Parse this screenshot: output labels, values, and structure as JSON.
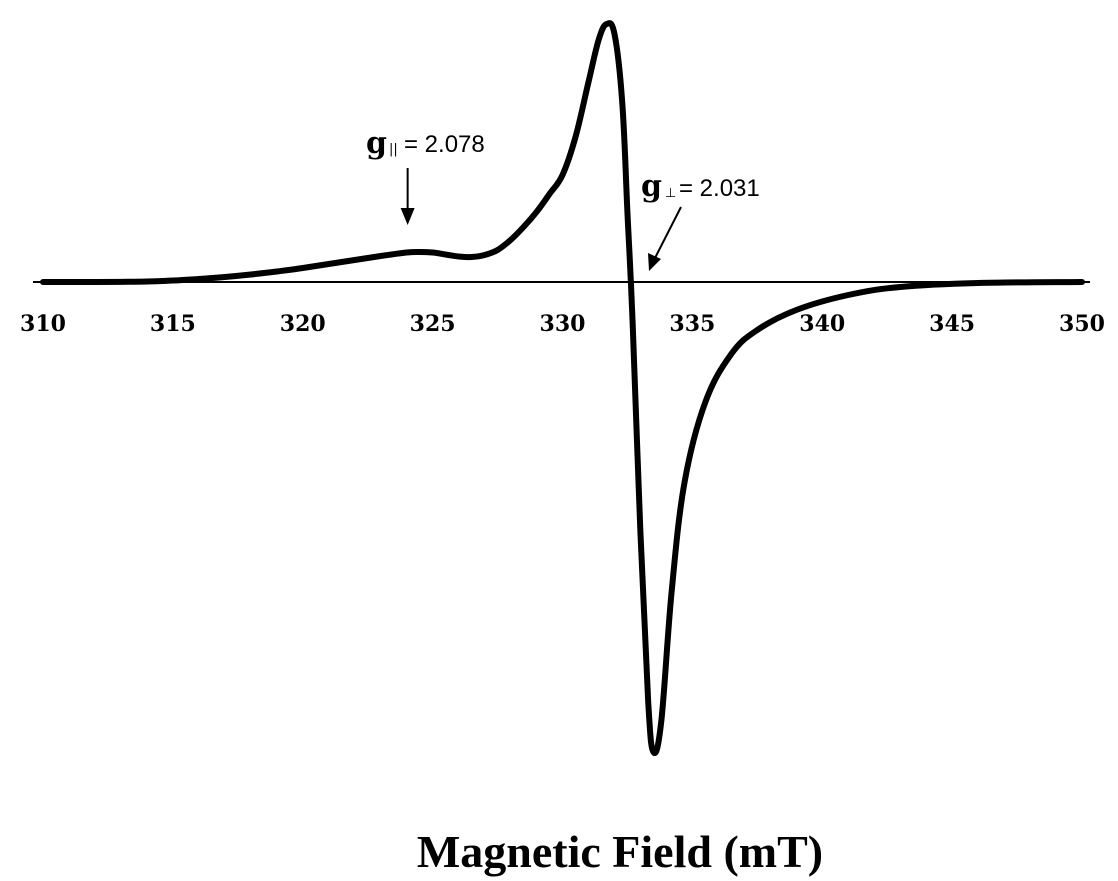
{
  "chart_data": {
    "type": "line",
    "xlabel": "Magnetic Field (mT)",
    "ylabel": "",
    "title": "",
    "xlim": [
      310,
      350
    ],
    "x_ticks": [
      310,
      315,
      320,
      325,
      330,
      335,
      340,
      345,
      350
    ],
    "grid": false,
    "legend": "none",
    "line_color": "#000000",
    "series": [
      {
        "points": [
          [
            310,
            0
          ],
          [
            312,
            0
          ],
          [
            314,
            0.5
          ],
          [
            315,
            1.5
          ],
          [
            316,
            3
          ],
          [
            317,
            5
          ],
          [
            318,
            7.5
          ],
          [
            319,
            10.5
          ],
          [
            320,
            14
          ],
          [
            321,
            18
          ],
          [
            322,
            22
          ],
          [
            323,
            26
          ],
          [
            324,
            29.5
          ],
          [
            324.5,
            30
          ],
          [
            325,
            29.5
          ],
          [
            325.5,
            27.5
          ],
          [
            326,
            25.5
          ],
          [
            326.5,
            25
          ],
          [
            327,
            27
          ],
          [
            327.5,
            32
          ],
          [
            328,
            42
          ],
          [
            328.5,
            55
          ],
          [
            329,
            70
          ],
          [
            329.5,
            88
          ],
          [
            330,
            107
          ],
          [
            330.5,
            145
          ],
          [
            331,
            200
          ],
          [
            331.4,
            243
          ],
          [
            331.7,
            258
          ],
          [
            332,
            248
          ],
          [
            332.3,
            180
          ],
          [
            332.5,
            70
          ],
          [
            332.7,
            -40
          ],
          [
            333,
            -250
          ],
          [
            333.3,
            -420
          ],
          [
            333.5,
            -470
          ],
          [
            333.8,
            -440
          ],
          [
            334.2,
            -310
          ],
          [
            334.7,
            -200
          ],
          [
            335.5,
            -120
          ],
          [
            336.5,
            -72
          ],
          [
            337.5,
            -48
          ],
          [
            339,
            -28
          ],
          [
            341,
            -13
          ],
          [
            343,
            -5
          ],
          [
            346,
            -1
          ],
          [
            350,
            0
          ]
        ]
      }
    ],
    "annotations": [
      {
        "label": "g",
        "subscript": "||",
        "value": "= 2.078",
        "field": 324.5,
        "arrow": "down"
      },
      {
        "label": "g",
        "subscript": "⊥",
        "value": "= 2.031",
        "field": 333.3,
        "arrow": "diagonal"
      }
    ]
  }
}
